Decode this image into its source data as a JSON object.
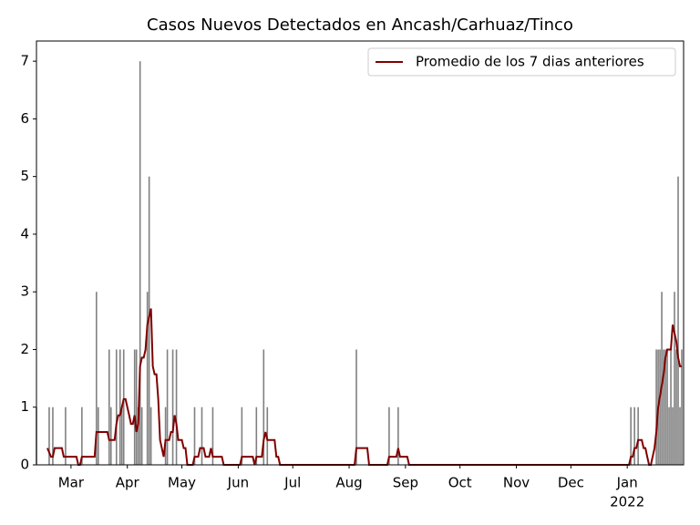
{
  "chart_data": {
    "type": "bar",
    "title": "Casos Nuevos Detectados en Ancash/Carhuaz/Tinco",
    "bars": {
      "color": "#808080",
      "x": [
        "2021-02-10",
        "2021-02-17",
        "2021-02-19",
        "2021-02-26",
        "2021-03-07",
        "2021-03-15",
        "2021-03-16",
        "2021-03-22",
        "2021-03-23",
        "2021-03-26",
        "2021-03-28",
        "2021-03-29",
        "2021-03-30",
        "2021-04-05",
        "2021-04-06",
        "2021-04-07",
        "2021-04-08",
        "2021-04-09",
        "2021-04-12",
        "2021-04-13",
        "2021-04-14",
        "2021-04-22",
        "2021-04-23",
        "2021-04-26",
        "2021-04-28",
        "2021-05-08",
        "2021-05-12",
        "2021-05-18",
        "2021-06-03",
        "2021-06-11",
        "2021-06-15",
        "2021-06-17",
        "2021-08-05",
        "2021-08-23",
        "2021-08-28",
        "2022-01-03",
        "2022-01-05",
        "2022-01-07",
        "2022-01-17",
        "2022-01-18",
        "2022-01-19",
        "2022-01-20",
        "2022-01-21",
        "2022-01-22",
        "2022-01-23",
        "2022-01-24",
        "2022-01-25",
        "2022-01-26",
        "2022-01-27",
        "2022-01-28",
        "2022-01-29",
        "2022-01-30",
        "2022-01-31"
      ],
      "values": [
        1,
        1,
        1,
        1,
        1,
        3,
        1,
        2,
        1,
        2,
        2,
        1,
        2,
        2,
        2,
        1,
        7,
        1,
        3,
        5,
        1,
        1,
        2,
        2,
        2,
        1,
        1,
        1,
        1,
        1,
        2,
        1,
        2,
        1,
        1,
        1,
        1,
        1,
        2,
        2,
        2,
        3,
        2,
        2,
        2,
        1,
        2,
        1,
        3,
        2,
        5,
        1,
        2
      ]
    },
    "series": [
      {
        "name": "Promedio de los 7 dias anteriores",
        "color": "#800000",
        "x": [
          "2021-02-16",
          "2021-02-18",
          "2021-02-19",
          "2021-02-20",
          "2021-02-24",
          "2021-02-25",
          "2021-03-04",
          "2021-03-05",
          "2021-03-06",
          "2021-03-07",
          "2021-03-14",
          "2021-03-15",
          "2021-03-21",
          "2021-03-22",
          "2021-03-25",
          "2021-03-26",
          "2021-03-27",
          "2021-03-28",
          "2021-03-30",
          "2021-03-31",
          "2021-04-02",
          "2021-04-03",
          "2021-04-04",
          "2021-04-05",
          "2021-04-06",
          "2021-04-07",
          "2021-04-08",
          "2021-04-09",
          "2021-04-10",
          "2021-04-11",
          "2021-04-12",
          "2021-04-13",
          "2021-04-14",
          "2021-04-15",
          "2021-04-16",
          "2021-04-17",
          "2021-04-18",
          "2021-04-19",
          "2021-04-21",
          "2021-04-22",
          "2021-04-24",
          "2021-04-25",
          "2021-04-26",
          "2021-04-27",
          "2021-04-28",
          "2021-04-29",
          "2021-05-01",
          "2021-05-02",
          "2021-05-03",
          "2021-05-04",
          "2021-05-07",
          "2021-05-08",
          "2021-05-10",
          "2021-05-11",
          "2021-05-13",
          "2021-05-14",
          "2021-05-16",
          "2021-05-17",
          "2021-05-18",
          "2021-05-23",
          "2021-05-24",
          "2021-06-02",
          "2021-06-03",
          "2021-06-09",
          "2021-06-10",
          "2021-06-11",
          "2021-06-14",
          "2021-06-15",
          "2021-06-16",
          "2021-06-17",
          "2021-06-21",
          "2021-06-22",
          "2021-06-23",
          "2021-06-24",
          "2021-08-04",
          "2021-08-05",
          "2021-08-11",
          "2021-08-12",
          "2021-08-22",
          "2021-08-23",
          "2021-08-27",
          "2021-08-28",
          "2021-08-29",
          "2021-09-02",
          "2021-09-03",
          "2022-01-02",
          "2022-01-03",
          "2022-01-04",
          "2022-01-05",
          "2022-01-06",
          "2022-01-07",
          "2022-01-09",
          "2022-01-10",
          "2022-01-11",
          "2022-01-12",
          "2022-01-13",
          "2022-01-14",
          "2022-01-16",
          "2022-01-17",
          "2022-01-18",
          "2022-01-21",
          "2022-01-22",
          "2022-01-23",
          "2022-01-25",
          "2022-01-26",
          "2022-01-28",
          "2022-01-29",
          "2022-01-30",
          "2022-01-31"
        ],
        "values": [
          0.29,
          0.14,
          0.14,
          0.29,
          0.29,
          0.14,
          0.14,
          0,
          0,
          0.14,
          0.14,
          0.57,
          0.57,
          0.43,
          0.43,
          0.71,
          0.86,
          0.86,
          1.14,
          1.14,
          0.86,
          0.71,
          0.71,
          0.86,
          0.57,
          0.71,
          1.71,
          1.86,
          1.86,
          2.0,
          2.43,
          2.57,
          2.71,
          1.71,
          1.57,
          1.57,
          1.14,
          0.43,
          0.14,
          0.43,
          0.43,
          0.57,
          0.57,
          0.86,
          0.71,
          0.43,
          0.43,
          0.29,
          0.29,
          0,
          0,
          0.14,
          0.14,
          0.29,
          0.29,
          0.14,
          0.14,
          0.29,
          0.14,
          0.14,
          0,
          0,
          0.14,
          0.14,
          0,
          0.14,
          0.14,
          0.43,
          0.57,
          0.43,
          0.43,
          0.14,
          0.14,
          0,
          0,
          0.29,
          0.29,
          0,
          0,
          0.14,
          0.14,
          0.29,
          0.14,
          0.14,
          0,
          0,
          0.14,
          0.14,
          0.29,
          0.29,
          0.43,
          0.43,
          0.29,
          0.29,
          0.14,
          0,
          0,
          0.29,
          0.57,
          1.0,
          1.57,
          1.86,
          2.0,
          2.0,
          2.43,
          2.14,
          1.86,
          1.71,
          1.71
        ]
      }
    ],
    "xlim": [
      "2021-02-10",
      "2022-02-01"
    ],
    "xticks": [
      {
        "value": "2021-03-01",
        "label": "Mar"
      },
      {
        "value": "2021-04-01",
        "label": "Apr"
      },
      {
        "value": "2021-05-01",
        "label": "May"
      },
      {
        "value": "2021-06-01",
        "label": "Jun"
      },
      {
        "value": "2021-07-01",
        "label": "Jul"
      },
      {
        "value": "2021-08-01",
        "label": "Aug"
      },
      {
        "value": "2021-09-01",
        "label": "Sep"
      },
      {
        "value": "2021-10-01",
        "label": "Oct"
      },
      {
        "value": "2021-11-01",
        "label": "Nov"
      },
      {
        "value": "2021-12-01",
        "label": "Dec"
      },
      {
        "value": "2022-01-01",
        "label": "Jan"
      }
    ],
    "year_label": "2022",
    "ylim": [
      0,
      7.35
    ],
    "yticks": [
      0,
      1,
      2,
      3,
      4,
      5,
      6,
      7
    ],
    "legend": "upper right"
  }
}
